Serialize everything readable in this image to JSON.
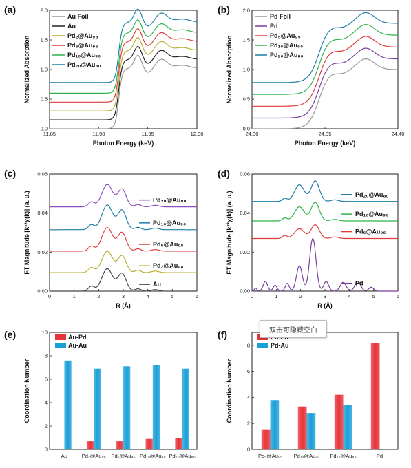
{
  "overlay": {
    "text": "双击可隐藏空白"
  },
  "chart_data": [
    {
      "panel": "(a)",
      "type": "line",
      "xlabel": "Photon Energy (keV)",
      "ylabel": "Normalized Absorption",
      "xlim": [
        11.85,
        12.0
      ],
      "ylim": [
        0,
        2.0
      ],
      "xticks": [
        "11.85",
        "11.90",
        "11.95",
        "12.00"
      ],
      "yticks": [
        "0.0",
        "0.5",
        "1.0",
        "1.5",
        "2.0"
      ],
      "series": [
        {
          "name": "Au Foil",
          "color": "#999999",
          "offset": 0.0
        },
        {
          "name": "Au",
          "color": "#222222",
          "offset": 0.15
        },
        {
          "name": "Pd₂@Au₉₈",
          "color": "#b8b030",
          "offset": 0.3
        },
        {
          "name": "Pd₅@Au₉₅",
          "color": "#e03b3b",
          "offset": 0.45
        },
        {
          "name": "Pd₁₀@Au₉₀",
          "color": "#2db34a",
          "offset": 0.6
        },
        {
          "name": "Pd₂₀@Au₈₀",
          "color": "#1f7fa8",
          "offset": 0.78
        }
      ]
    },
    {
      "panel": "(b)",
      "type": "line",
      "xlabel": "Photon Energy (keV)",
      "ylabel": "Normalized Absorption",
      "xlim": [
        24.3,
        24.4
      ],
      "ylim": [
        0,
        2.0
      ],
      "xticks": [
        "24.30",
        "24.35",
        "24.40"
      ],
      "yticks": [
        "0.0",
        "0.5",
        "1.0",
        "1.5",
        "2.0"
      ],
      "series": [
        {
          "name": "Pd Foil",
          "color": "#999999",
          "offset": 0.0
        },
        {
          "name": "Pd",
          "color": "#7a3d9e",
          "offset": 0.18
        },
        {
          "name": "Pd₅@Au₉₅",
          "color": "#e03b3b",
          "offset": 0.38
        },
        {
          "name": "Pd₁₀@Au₉₀",
          "color": "#2db34a",
          "offset": 0.58
        },
        {
          "name": "Pd₂₀@Au₈₀",
          "color": "#1f7fa8",
          "offset": 0.78
        }
      ]
    },
    {
      "panel": "(c)",
      "type": "line",
      "xlabel": "R (Å)",
      "ylabel": "FT Magnitude [k²*χ(k)] (a. u.)",
      "xlim": [
        0,
        6
      ],
      "ylim": [
        0,
        0.06
      ],
      "xticks": [
        "0",
        "1",
        "2",
        "3",
        "4",
        "5",
        "6"
      ],
      "yticks": [
        "0.00",
        "0.02",
        "0.04",
        "0.06"
      ],
      "series": [
        {
          "name": "Au",
          "color": "#444444",
          "offset": 0.0
        },
        {
          "name": "Pd₂@Au₉₈",
          "color": "#b8b030",
          "offset": 0.0095
        },
        {
          "name": "Pd₅@Au₉₅",
          "color": "#e03b3b",
          "offset": 0.0205
        },
        {
          "name": "Pd₁₀@Au₉₀",
          "color": "#1f7fa8",
          "offset": 0.0315
        },
        {
          "name": "Pd₂₀@Au₈₀",
          "color": "#8b4fbf",
          "offset": 0.0432
        }
      ]
    },
    {
      "panel": "(d)",
      "type": "line",
      "xlabel": "R (Å)",
      "ylabel": "FT Magnitude [k²*χ(k)] (a. u.)",
      "xlim": [
        0,
        6
      ],
      "ylim": [
        0,
        0.06
      ],
      "xticks": [
        "0",
        "1",
        "2",
        "3",
        "4",
        "5",
        "6"
      ],
      "yticks": [
        "0.00",
        "0.02",
        "0.04",
        "0.06"
      ],
      "series": [
        {
          "name": "Pd",
          "color": "#7a3d9e",
          "offset": 0.0
        },
        {
          "name": "Pd₅@Au₉₅",
          "color": "#e03b3b",
          "offset": 0.027
        },
        {
          "name": "Pd₁₀@Au₉₀",
          "color": "#2db34a",
          "offset": 0.036
        },
        {
          "name": "Pd₂₀@Au₈₀",
          "color": "#1f7fa8",
          "offset": 0.046
        }
      ]
    },
    {
      "panel": "(e)",
      "type": "bar",
      "ylabel": "Coordination Number",
      "ylim": [
        0,
        10
      ],
      "yticks": [
        "0",
        "2",
        "4",
        "6",
        "8",
        "10"
      ],
      "categories": [
        "Au",
        "Pd₂@Au₉₈",
        "Pd₅@Au₉₅",
        "Pd₁₀@Au₉₀",
        "Pd₂₀@Au₈₀"
      ],
      "series": [
        {
          "name": "Au-Pd",
          "color": "#e8333a",
          "values": [
            null,
            0.7,
            0.7,
            0.9,
            1.0
          ]
        },
        {
          "name": "Au-Au",
          "color": "#1aa0d8",
          "values": [
            7.6,
            6.9,
            7.1,
            7.2,
            6.9
          ]
        }
      ]
    },
    {
      "panel": "(f)",
      "type": "bar",
      "ylabel": "Coordination Number",
      "ylim": [
        0,
        9
      ],
      "yticks": [
        "0",
        "2",
        "4",
        "6",
        "8"
      ],
      "categories": [
        "Pd₅@Au₉₅",
        "Pd₁₀@Au₉₀",
        "Pd₂₀@Au₈₀",
        "Pd"
      ],
      "series": [
        {
          "name": "Pd-Pd",
          "color": "#e8333a",
          "values": [
            1.5,
            3.3,
            4.2,
            8.2
          ]
        },
        {
          "name": "Pd-Au",
          "color": "#1aa0d8",
          "values": [
            3.8,
            2.8,
            3.4,
            null
          ]
        }
      ]
    }
  ]
}
